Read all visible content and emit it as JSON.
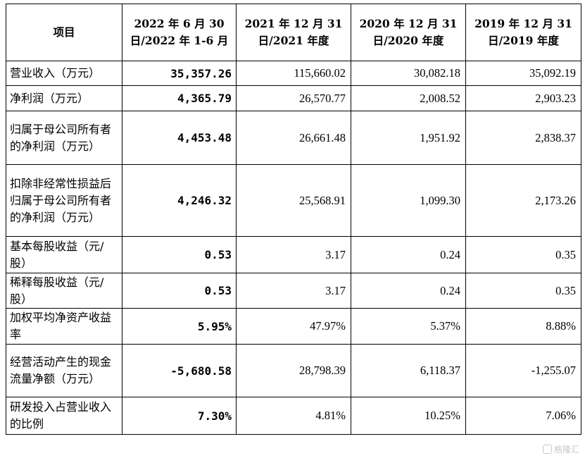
{
  "table": {
    "headers": [
      "项目",
      "2022 年 6 月 30 日/2022 年 1-6 月",
      "2021 年 12 月 31 日/2021 年度",
      "2020 年 12 月 31 日/2020 年度",
      "2019 年 12 月 31 日/2019 年度"
    ],
    "rows": [
      {
        "label": "营业收入（万元）",
        "h1_2022": "35,357.26",
        "y2021": "115,660.02",
        "y2020": "30,082.18",
        "y2019": "35,092.19"
      },
      {
        "label": "净利润（万元）",
        "h1_2022": "4,365.79",
        "y2021": "26,570.77",
        "y2020": "2,008.52",
        "y2019": "2,903.23"
      },
      {
        "label": "归属于母公司所有者的净利润（万元）",
        "h1_2022": "4,453.48",
        "y2021": "26,661.48",
        "y2020": "1,951.92",
        "y2019": "2,838.37"
      },
      {
        "label": "扣除非经常性损益后归属于母公司所有者的净利润（万元）",
        "h1_2022": "4,246.32",
        "y2021": "25,568.91",
        "y2020": "1,099.30",
        "y2019": "2,173.26"
      },
      {
        "label": "基本每股收益（元/股）",
        "h1_2022": "0.53",
        "y2021": "3.17",
        "y2020": "0.24",
        "y2019": "0.35"
      },
      {
        "label": "稀释每股收益（元/股）",
        "h1_2022": "0.53",
        "y2021": "3.17",
        "y2020": "0.24",
        "y2019": "0.35"
      },
      {
        "label": "加权平均净资产收益率",
        "h1_2022": "5.95%",
        "y2021": "47.97%",
        "y2020": "5.37%",
        "y2019": "8.88%"
      },
      {
        "label": "经营活动产生的现金流量净额（万元）",
        "h1_2022": "-5,680.58",
        "y2021": "28,798.39",
        "y2020": "6,118.37",
        "y2019": "-1,255.07"
      },
      {
        "label": "研发投入占营业收入的比例",
        "h1_2022": "7.30%",
        "y2021": "4.81%",
        "y2020": "10.25%",
        "y2019": "7.06%"
      }
    ]
  },
  "watermark": {
    "text": "格隆汇",
    "icon": "gelonghui-logo-icon"
  }
}
